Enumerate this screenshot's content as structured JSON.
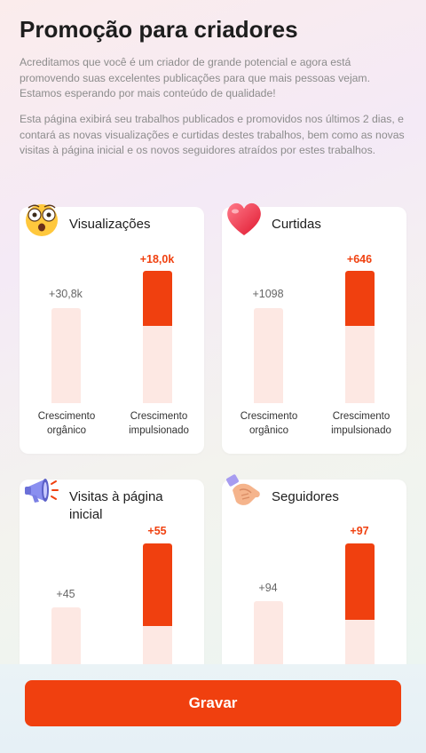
{
  "header": {
    "title": "Promoção para criadores",
    "paragraph1": "Acreditamos que você é um criador de grande potencial e agora está promovendo suas excelentes publicações para que mais pessoas vejam. Estamos esperando por mais conteúdo de qualidade!",
    "paragraph2": "Esta página exibirá seu trabalhos publicados e promovidos nos últimos 2 dias, e contará as novas visualizações e curtidas destes trabalhos, bem como as novas visitas à página inicial e os novos seguidores atraídos por estes trabalhos."
  },
  "labels": {
    "organic": "Crescimento orgânico",
    "boosted": "Crescimento impulsionado"
  },
  "cards": [
    {
      "title": "Visualizações",
      "icon": "astonished-face-icon",
      "organic": "+30,8k",
      "boosted": "+18,0k"
    },
    {
      "title": "Curtidas",
      "icon": "heart-icon",
      "organic": "+1098",
      "boosted": "+646"
    },
    {
      "title": "Visitas à página inicial",
      "icon": "megaphone-icon",
      "organic": "+45",
      "boosted": "+55"
    },
    {
      "title": "Seguidores",
      "icon": "handshake-icon",
      "organic": "+94",
      "boosted": "+97"
    }
  ],
  "colors": {
    "accent": "#f0400f",
    "bar_light": "#fde8e3"
  },
  "footer": {
    "save_label": "Gravar"
  }
}
